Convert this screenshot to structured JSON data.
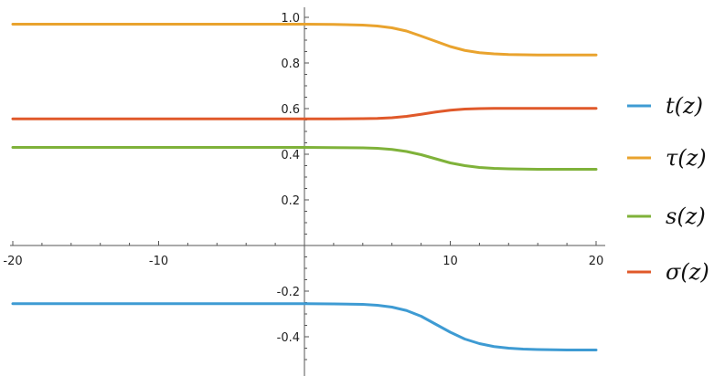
{
  "chart_data": {
    "type": "line",
    "x": [
      -20,
      -18,
      -16,
      -14,
      -12,
      -10,
      -8,
      -6,
      -4,
      -2,
      0,
      2,
      4,
      5,
      6,
      7,
      8,
      9,
      10,
      11,
      12,
      13,
      14,
      15,
      16,
      17,
      18,
      19,
      20
    ],
    "series": [
      {
        "name": "t(z)",
        "color": "#3e9bd3",
        "values": [
          -0.255,
          -0.255,
          -0.255,
          -0.255,
          -0.255,
          -0.255,
          -0.255,
          -0.255,
          -0.255,
          -0.255,
          -0.255,
          -0.256,
          -0.258,
          -0.262,
          -0.27,
          -0.285,
          -0.31,
          -0.345,
          -0.38,
          -0.41,
          -0.43,
          -0.443,
          -0.45,
          -0.454,
          -0.456,
          -0.457,
          -0.458,
          -0.458,
          -0.458
        ]
      },
      {
        "name": "τ(z)",
        "color": "#e9a32e",
        "values": [
          0.97,
          0.97,
          0.97,
          0.97,
          0.97,
          0.97,
          0.97,
          0.97,
          0.97,
          0.97,
          0.97,
          0.969,
          0.966,
          0.962,
          0.954,
          0.94,
          0.918,
          0.895,
          0.872,
          0.855,
          0.845,
          0.84,
          0.837,
          0.836,
          0.835,
          0.835,
          0.835,
          0.835,
          0.835
        ]
      },
      {
        "name": "s(z)",
        "color": "#7fb23a",
        "values": [
          0.43,
          0.43,
          0.43,
          0.43,
          0.43,
          0.43,
          0.43,
          0.43,
          0.43,
          0.43,
          0.43,
          0.429,
          0.428,
          0.426,
          0.421,
          0.412,
          0.398,
          0.38,
          0.362,
          0.35,
          0.342,
          0.338,
          0.336,
          0.335,
          0.334,
          0.334,
          0.334,
          0.334,
          0.334
        ]
      },
      {
        "name": "σ(z)",
        "color": "#e0592a",
        "values": [
          0.555,
          0.555,
          0.555,
          0.555,
          0.555,
          0.555,
          0.555,
          0.555,
          0.555,
          0.555,
          0.555,
          0.555,
          0.556,
          0.557,
          0.56,
          0.566,
          0.575,
          0.585,
          0.593,
          0.598,
          0.6,
          0.601,
          0.601,
          0.601,
          0.601,
          0.601,
          0.601,
          0.601,
          0.601
        ]
      }
    ],
    "xlim": [
      -20,
      20
    ],
    "ylim": [
      -0.5,
      1.0
    ],
    "xticks": [
      -20,
      -10,
      10,
      20
    ],
    "xtick_labels": [
      "-20",
      "-10",
      "10",
      "20"
    ],
    "yticks": [
      -0.4,
      -0.2,
      0.2,
      0.4,
      0.6,
      0.8,
      1.0
    ],
    "ytick_labels": [
      "-0.4",
      "-0.2",
      "0.2",
      "0.4",
      "0.6",
      "0.8",
      "1.0"
    ],
    "xlabel": "",
    "ylabel": "",
    "title": "",
    "grid": false,
    "legend_position": "right"
  }
}
